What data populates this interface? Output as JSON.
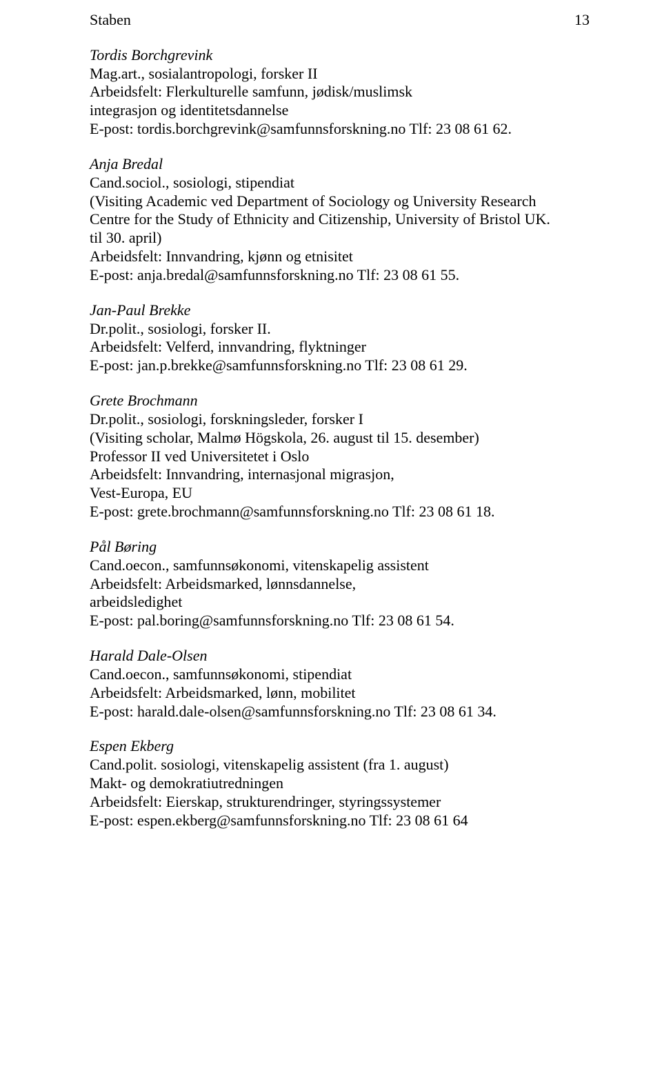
{
  "header": {
    "title": "Staben",
    "pageNumber": "13"
  },
  "entries": [
    {
      "name": "Tordis Borchgrevink",
      "lines": [
        "Mag.art., sosialantropologi, forsker II",
        "Arbeidsfelt: Flerkulturelle samfunn, jødisk/muslimsk",
        "integrasjon og identitetsdannelse",
        "E-post: tordis.borchgrevink@samfunnsforskning.no Tlf: 23 08 61 62."
      ]
    },
    {
      "name": "Anja Bredal",
      "lines": [
        "Cand.sociol., sosiologi, stipendiat",
        "(Visiting Academic ved Department of Sociology og University Research",
        "Centre for the Study of Ethnicity and Citizenship, University of Bristol UK.",
        "til 30. april)",
        "Arbeidsfelt: Innvandring, kjønn og etnisitet",
        "E-post: anja.bredal@samfunnsforskning.no Tlf: 23 08 61 55."
      ]
    },
    {
      "name": "Jan-Paul Brekke",
      "lines": [
        "Dr.polit., sosiologi, forsker II.",
        "Arbeidsfelt: Velferd, innvandring, flyktninger",
        "E-post: jan.p.brekke@samfunnsforskning.no Tlf: 23 08 61 29."
      ]
    },
    {
      "name": "Grete Brochmann",
      "lines": [
        "Dr.polit., sosiologi, forskningsleder, forsker I",
        "(Visiting scholar, Malmø Högskola, 26. august til 15. desember)",
        "Professor II ved Universitetet i Oslo",
        "Arbeidsfelt: Innvandring, internasjonal migrasjon,",
        "Vest-Europa, EU",
        "E-post: grete.brochmann@samfunnsforskning.no Tlf: 23 08 61 18."
      ]
    },
    {
      "name": "Pål Børing",
      "lines": [
        "Cand.oecon., samfunnsøkonomi, vitenskapelig assistent",
        "Arbeidsfelt: Arbeidsmarked, lønnsdannelse,",
        "arbeidsledighet",
        "E-post: pal.boring@samfunnsforskning.no Tlf: 23 08 61 54."
      ]
    },
    {
      "name": "Harald Dale-Olsen",
      "lines": [
        "Cand.oecon., samfunnsøkonomi, stipendiat",
        "Arbeidsfelt: Arbeidsmarked, lønn, mobilitet",
        "E-post: harald.dale-olsen@samfunnsforskning.no Tlf: 23 08 61 34."
      ]
    },
    {
      "name": "Espen Ekberg",
      "lines": [
        "Cand.polit. sosiologi, vitenskapelig assistent (fra 1. august)",
        "Makt- og demokratiutredningen",
        "Arbeidsfelt: Eierskap, strukturendringer, styringssystemer",
        "E-post: espen.ekberg@samfunnsforskning.no Tlf: 23 08 61 64"
      ]
    }
  ]
}
